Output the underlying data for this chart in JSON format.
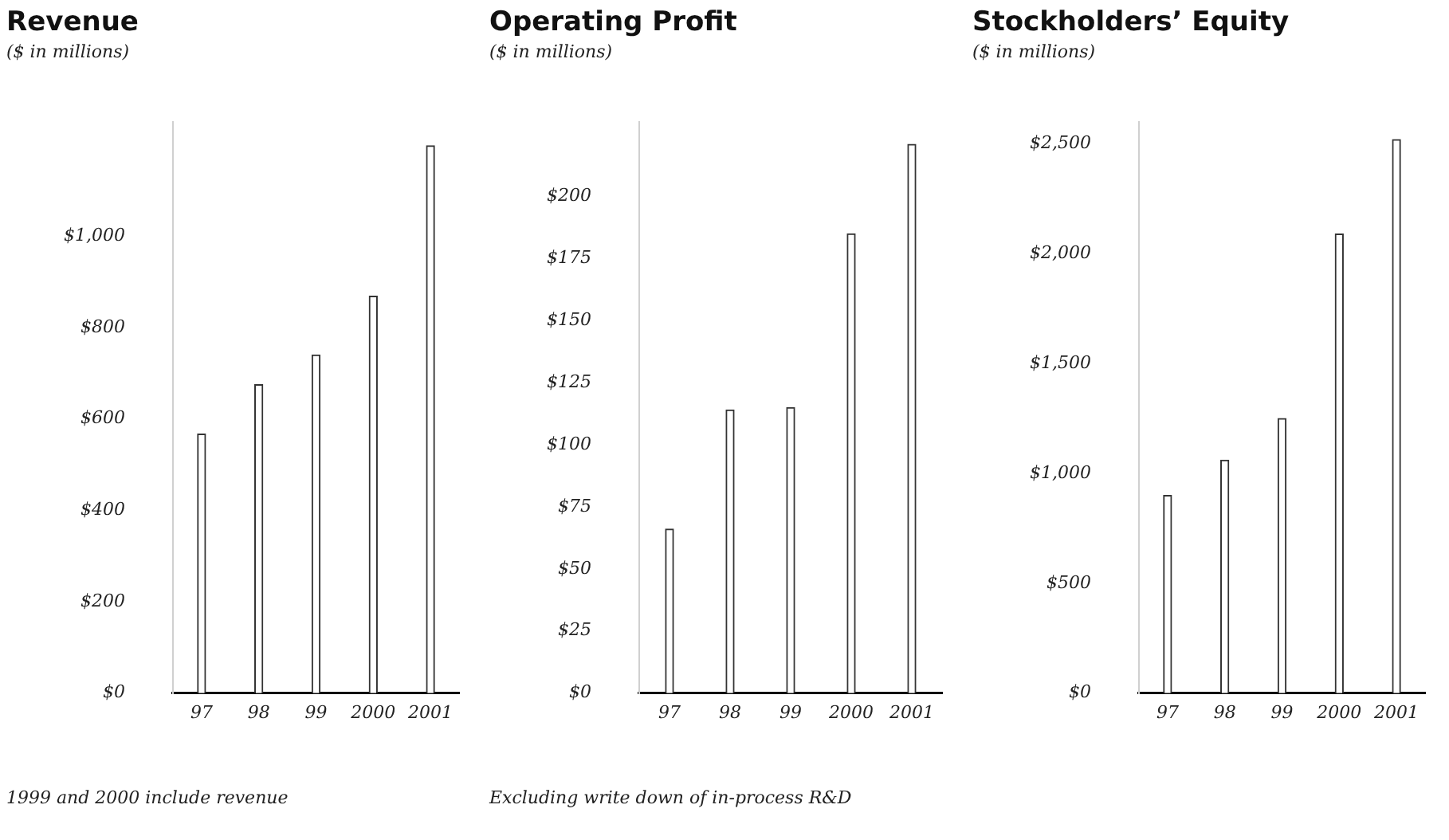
{
  "chart_data": [
    {
      "type": "bar",
      "title": "Revenue",
      "subtitle": "($ in millions)",
      "categories": [
        "97",
        "98",
        "99",
        "2000",
        "2001"
      ],
      "values": [
        567,
        675,
        740,
        869,
        1198
      ],
      "color": "#ffffff",
      "ylim": [
        0,
        1250
      ],
      "yticks": [
        {
          "value": 0,
          "label": "$0"
        },
        {
          "value": 200,
          "label": "$200"
        },
        {
          "value": 400,
          "label": "$400"
        },
        {
          "value": 600,
          "label": "$600"
        },
        {
          "value": 800,
          "label": "$800"
        },
        {
          "value": 1000,
          "label": "$1,000"
        }
      ],
      "grid": false,
      "legend": false,
      "annotations": [
        "1999 and 2000 include revenue"
      ]
    },
    {
      "type": "bar",
      "title": "Operating Profit",
      "subtitle": "($ in millions)",
      "categories": [
        "97",
        "98",
        "99",
        "2000",
        "2001"
      ],
      "values": [
        66,
        114,
        115,
        185,
        221
      ],
      "color": "#ffffff",
      "ylim": [
        0,
        230
      ],
      "yticks": [
        {
          "value": 0,
          "label": "$0"
        },
        {
          "value": 25,
          "label": "$25"
        },
        {
          "value": 50,
          "label": "$50"
        },
        {
          "value": 75,
          "label": "$75"
        },
        {
          "value": 100,
          "label": "$100"
        },
        {
          "value": 125,
          "label": "$125"
        },
        {
          "value": 150,
          "label": "$150"
        },
        {
          "value": 175,
          "label": "$175"
        },
        {
          "value": 200,
          "label": "$200"
        }
      ],
      "grid": false,
      "legend": false,
      "annotations": [
        "Excluding write down of in-process R&D"
      ]
    },
    {
      "type": "bar",
      "title": "Stockholders’ Equity",
      "subtitle": "($ in millions)",
      "categories": [
        "97",
        "98",
        "99",
        "2000",
        "2001"
      ],
      "values": [
        900,
        1060,
        1250,
        2090,
        2520
      ],
      "color": "#ffffff",
      "ylim": [
        0,
        2600
      ],
      "yticks": [
        {
          "value": 0,
          "label": "$0"
        },
        {
          "value": 500,
          "label": "$500"
        },
        {
          "value": 1000,
          "label": "$1,000"
        },
        {
          "value": 1500,
          "label": "$1,500"
        },
        {
          "value": 2000,
          "label": "$2,000"
        },
        {
          "value": 2500,
          "label": "$2,500"
        }
      ],
      "grid": false,
      "legend": false
    }
  ]
}
